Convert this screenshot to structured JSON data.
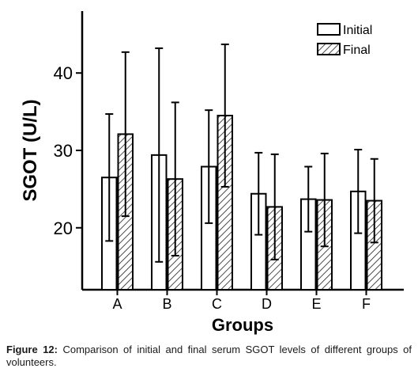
{
  "chart_data": {
    "type": "bar",
    "xlabel": "Groups",
    "ylabel": "SGOT (U/L)",
    "categories": [
      "A",
      "B",
      "C",
      "D",
      "E",
      "F"
    ],
    "ylim": [
      12,
      48
    ],
    "yticks": [
      20,
      30,
      40
    ],
    "legend_position": "top-right",
    "grid": false,
    "series": [
      {
        "name": "Initial",
        "pattern": "empty",
        "values": [
          26.5,
          29.4,
          27.9,
          24.4,
          23.7,
          24.7
        ],
        "errors": [
          8.2,
          13.8,
          7.3,
          5.3,
          4.2,
          5.4
        ]
      },
      {
        "name": "Final",
        "pattern": "hatched",
        "values": [
          32.1,
          26.3,
          34.5,
          22.7,
          23.6,
          23.5
        ],
        "errors": [
          10.6,
          9.9,
          9.2,
          6.8,
          6.0,
          5.4
        ]
      }
    ]
  },
  "caption": {
    "label": "Figure 12:",
    "text": " Comparison of initial and final serum SGOT levels of different groups of volunteers."
  }
}
